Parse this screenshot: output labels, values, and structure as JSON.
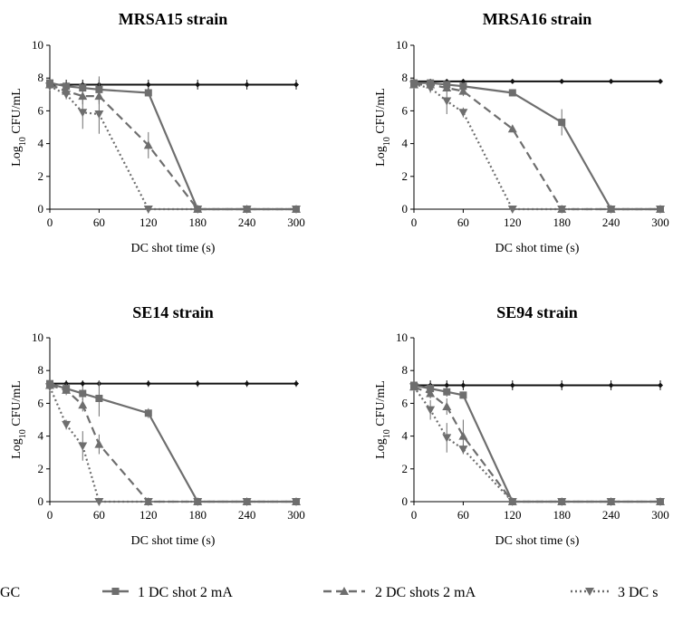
{
  "chart_data": [
    {
      "type": "line",
      "title": "MRSA15 strain",
      "xlabel": "DC shot time (s)",
      "ylabel_base": "Log",
      "ylabel_sub": "10",
      "ylabel_rest": " CFU/mL",
      "xlim": [
        0,
        300
      ],
      "ylim": [
        0,
        10
      ],
      "xticks": [
        "0",
        "60",
        "120",
        "180",
        "240",
        "300"
      ],
      "yticks": [
        "0",
        "2",
        "4",
        "6",
        "8",
        "10"
      ],
      "series": [
        {
          "key": "gc",
          "points": [
            [
              0,
              7.6
            ],
            [
              20,
              7.6
            ],
            [
              40,
              7.6
            ],
            [
              60,
              7.6
            ],
            [
              120,
              7.6
            ],
            [
              180,
              7.6
            ],
            [
              240,
              7.6
            ],
            [
              300,
              7.6
            ]
          ],
          "err": [
            0.3,
            0.3,
            0.3,
            0.3,
            0.3,
            0.3,
            0.3,
            0.3
          ]
        },
        {
          "key": "s1",
          "points": [
            [
              0,
              7.7
            ],
            [
              20,
              7.5
            ],
            [
              40,
              7.4
            ],
            [
              60,
              7.3
            ],
            [
              120,
              7.1
            ],
            [
              180,
              0
            ],
            [
              240,
              0
            ],
            [
              300,
              0
            ]
          ],
          "err": [
            0.2,
            0.2,
            0.3,
            0.8,
            0.2,
            0,
            0,
            0
          ]
        },
        {
          "key": "s2",
          "points": [
            [
              0,
              7.6
            ],
            [
              20,
              7.2
            ],
            [
              40,
              6.9
            ],
            [
              60,
              6.9
            ],
            [
              120,
              3.9
            ],
            [
              180,
              0
            ],
            [
              240,
              0
            ],
            [
              300,
              0
            ]
          ],
          "err": [
            0.2,
            0.3,
            0.5,
            0.5,
            0.8,
            0,
            0,
            0
          ]
        },
        {
          "key": "s3",
          "points": [
            [
              0,
              7.5
            ],
            [
              20,
              7.0
            ],
            [
              40,
              5.9
            ],
            [
              60,
              5.8
            ],
            [
              120,
              0
            ],
            [
              180,
              0
            ],
            [
              240,
              0
            ],
            [
              300,
              0
            ]
          ],
          "err": [
            0.2,
            0.3,
            1.0,
            1.2,
            0,
            0,
            0,
            0
          ]
        }
      ]
    },
    {
      "type": "line",
      "title": "MRSA16 strain",
      "xlabel": "DC shot time (s)",
      "ylabel_base": "Log",
      "ylabel_sub": "10",
      "ylabel_rest": " CFU/mL",
      "xlim": [
        0,
        300
      ],
      "ylim": [
        0,
        10
      ],
      "xticks": [
        "0",
        "60",
        "120",
        "180",
        "240",
        "300"
      ],
      "yticks": [
        "0",
        "2",
        "4",
        "6",
        "8",
        "10"
      ],
      "series": [
        {
          "key": "gc",
          "points": [
            [
              0,
              7.8
            ],
            [
              20,
              7.8
            ],
            [
              40,
              7.8
            ],
            [
              60,
              7.8
            ],
            [
              120,
              7.8
            ],
            [
              180,
              7.8
            ],
            [
              240,
              7.8
            ],
            [
              300,
              7.8
            ]
          ],
          "err": [
            0.1,
            0.1,
            0.1,
            0.1,
            0.1,
            0.1,
            0.1,
            0.1
          ]
        },
        {
          "key": "s1",
          "points": [
            [
              0,
              7.7
            ],
            [
              20,
              7.7
            ],
            [
              40,
              7.6
            ],
            [
              60,
              7.5
            ],
            [
              120,
              7.1
            ],
            [
              180,
              5.3
            ],
            [
              240,
              0
            ],
            [
              300,
              0
            ]
          ],
          "err": [
            0.1,
            0.2,
            0.2,
            0.2,
            0.2,
            0.8,
            0,
            0
          ]
        },
        {
          "key": "s2",
          "points": [
            [
              0,
              7.6
            ],
            [
              20,
              7.6
            ],
            [
              40,
              7.4
            ],
            [
              60,
              7.2
            ],
            [
              120,
              4.9
            ],
            [
              180,
              0
            ],
            [
              240,
              0
            ],
            [
              300,
              0
            ]
          ],
          "err": [
            0.1,
            0.2,
            0.2,
            0.3,
            0.2,
            0,
            0,
            0
          ]
        },
        {
          "key": "s3",
          "points": [
            [
              0,
              7.6
            ],
            [
              20,
              7.4
            ],
            [
              40,
              6.6
            ],
            [
              60,
              5.9
            ],
            [
              120,
              0
            ],
            [
              180,
              0
            ],
            [
              240,
              0
            ],
            [
              300,
              0
            ]
          ],
          "err": [
            0.1,
            0.3,
            0.8,
            0.3,
            0,
            0,
            0,
            0
          ]
        }
      ]
    },
    {
      "type": "line",
      "title": "SE14 strain",
      "xlabel": "DC shot time (s)",
      "ylabel_base": "Log",
      "ylabel_sub": "10",
      "ylabel_rest": " CFU/mL",
      "xlim": [
        0,
        300
      ],
      "ylim": [
        0,
        10
      ],
      "xticks": [
        "0",
        "60",
        "120",
        "180",
        "240",
        "300"
      ],
      "yticks": [
        "0",
        "2",
        "4",
        "6",
        "8",
        "10"
      ],
      "series": [
        {
          "key": "gc",
          "points": [
            [
              0,
              7.2
            ],
            [
              20,
              7.2
            ],
            [
              40,
              7.2
            ],
            [
              60,
              7.2
            ],
            [
              120,
              7.2
            ],
            [
              180,
              7.2
            ],
            [
              240,
              7.2
            ],
            [
              300,
              7.2
            ]
          ],
          "err": [
            0.2,
            0.2,
            0.2,
            0.2,
            0.2,
            0.2,
            0.2,
            0.2
          ]
        },
        {
          "key": "s1",
          "points": [
            [
              0,
              7.2
            ],
            [
              20,
              6.9
            ],
            [
              40,
              6.6
            ],
            [
              60,
              6.3
            ],
            [
              120,
              5.4
            ],
            [
              180,
              0
            ],
            [
              240,
              0
            ],
            [
              300,
              0
            ]
          ],
          "err": [
            0.2,
            0.3,
            0.4,
            1.1,
            0.3,
            0,
            0,
            0
          ]
        },
        {
          "key": "s2",
          "points": [
            [
              0,
              7.1
            ],
            [
              20,
              6.8
            ],
            [
              40,
              5.9
            ],
            [
              60,
              3.5
            ],
            [
              120,
              0
            ],
            [
              180,
              0
            ],
            [
              240,
              0
            ],
            [
              300,
              0
            ]
          ],
          "err": [
            0.2,
            0.3,
            0.4,
            0.6,
            0,
            0,
            0,
            0
          ]
        },
        {
          "key": "s3",
          "points": [
            [
              0,
              7.0
            ],
            [
              20,
              4.7
            ],
            [
              40,
              3.4
            ],
            [
              60,
              0
            ],
            [
              120,
              0
            ],
            [
              180,
              0
            ],
            [
              240,
              0
            ],
            [
              300,
              0
            ]
          ],
          "err": [
            0.2,
            0.3,
            0.9,
            0,
            0,
            0,
            0,
            0
          ]
        }
      ]
    },
    {
      "type": "line",
      "title": "SE94 strain",
      "xlabel": "DC shot time (s)",
      "ylabel_base": "Log",
      "ylabel_sub": "10",
      "ylabel_rest": " CFU/mL",
      "xlim": [
        0,
        300
      ],
      "ylim": [
        0,
        10
      ],
      "xticks": [
        "0",
        "60",
        "120",
        "180",
        "240",
        "300"
      ],
      "yticks": [
        "0",
        "2",
        "4",
        "6",
        "8",
        "10"
      ],
      "series": [
        {
          "key": "gc",
          "points": [
            [
              0,
              7.1
            ],
            [
              20,
              7.1
            ],
            [
              40,
              7.1
            ],
            [
              60,
              7.1
            ],
            [
              120,
              7.1
            ],
            [
              180,
              7.1
            ],
            [
              240,
              7.1
            ],
            [
              300,
              7.1
            ]
          ],
          "err": [
            0.3,
            0.3,
            0.3,
            0.3,
            0.3,
            0.3,
            0.3,
            0.3
          ]
        },
        {
          "key": "s1",
          "points": [
            [
              0,
              7.1
            ],
            [
              20,
              6.9
            ],
            [
              40,
              6.7
            ],
            [
              60,
              6.5
            ],
            [
              120,
              0
            ],
            [
              180,
              0
            ],
            [
              240,
              0
            ],
            [
              300,
              0
            ]
          ],
          "err": [
            0.2,
            0.3,
            0.3,
            0.2,
            0,
            0,
            0,
            0
          ]
        },
        {
          "key": "s2",
          "points": [
            [
              0,
              7.0
            ],
            [
              20,
              6.6
            ],
            [
              40,
              5.8
            ],
            [
              60,
              4.0
            ],
            [
              120,
              0
            ],
            [
              180,
              0
            ],
            [
              240,
              0
            ],
            [
              300,
              0
            ]
          ],
          "err": [
            0.2,
            0.3,
            0.5,
            1.0,
            0,
            0,
            0,
            0
          ]
        },
        {
          "key": "s3",
          "points": [
            [
              0,
              7.0
            ],
            [
              20,
              5.6
            ],
            [
              40,
              3.9
            ],
            [
              60,
              3.2
            ],
            [
              120,
              0
            ],
            [
              180,
              0
            ],
            [
              240,
              0
            ],
            [
              300,
              0
            ]
          ],
          "err": [
            0.2,
            0.6,
            0.9,
            0.3,
            0,
            0,
            0,
            0
          ]
        }
      ]
    }
  ],
  "legend": {
    "placement": "bottom",
    "entries": [
      {
        "key": "gc",
        "label": "GC"
      },
      {
        "key": "s1",
        "label": "1 DC shot 2 mA"
      },
      {
        "key": "s2",
        "label": "2 DC shots 2 mA"
      },
      {
        "key": "s3",
        "label": "3 DC s"
      }
    ]
  },
  "styles": {
    "gc": {
      "color": "#111111",
      "dash": "",
      "marker": "diamond"
    },
    "s1": {
      "color": "#6e6e6e",
      "dash": "",
      "marker": "square"
    },
    "s2": {
      "color": "#6e6e6e",
      "dash": "9,5",
      "marker": "triangle-up"
    },
    "s3": {
      "color": "#6e6e6e",
      "dash": "2,3",
      "marker": "triangle-down"
    }
  }
}
